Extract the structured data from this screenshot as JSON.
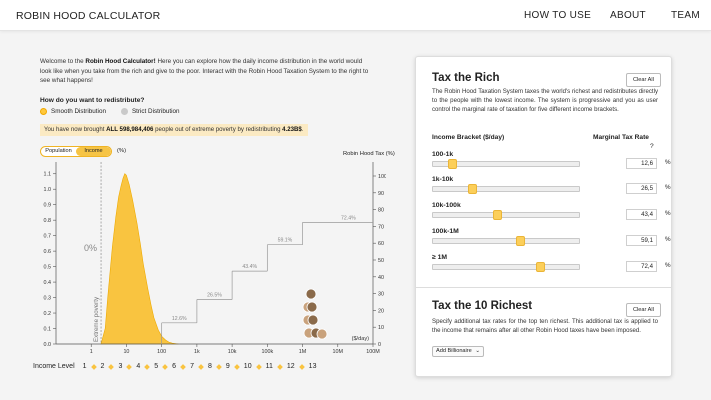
{
  "header": {
    "brand": "ROBIN HOOD CALCULATOR",
    "nav": [
      "HOW TO USE",
      "ABOUT",
      "TEAM"
    ]
  },
  "intro": {
    "p1": "Welcome to the ",
    "app_name": "Robin Hood Calculator!",
    "p2": " Here you can explore how the daily income distribution in the world would look like when you take from the rich and give to the poor. Interact with the Robin Hood Taxation System to the right to see what happens!"
  },
  "question": "How do you want to redistribute?",
  "options": [
    "Smooth Distribution",
    "Strict Distribution"
  ],
  "selected_option": "Smooth Distribution",
  "banner": {
    "pre": "You have now brought ",
    "count": "ALL 598,984,406",
    "mid": " people out of extreme poverty by redistributing ",
    "amount": "4.23B$",
    "post": "."
  },
  "toggle": [
    "Population",
    "Income"
  ],
  "toggle_selected": "Income",
  "pct_unit": "(%)",
  "tax_axis_title": "Robin Hood Tax (%)",
  "chart_data": {
    "type": "area",
    "x_scale": "log",
    "x_ticks": [
      "1",
      "10",
      "100",
      "1k",
      "10k",
      "100k",
      "1M",
      "10M",
      "100M"
    ],
    "x_unit": "($/day)",
    "y_left_ticks": [
      "0.0",
      "0.1",
      "0.2",
      "0.3",
      "0.4",
      "0.5",
      "0.6",
      "0.7",
      "0.8",
      "0.9",
      "1.0",
      "1.1"
    ],
    "y_right_ticks": [
      "0",
      "10",
      "20",
      "30",
      "40",
      "50",
      "60",
      "70",
      "80",
      "90",
      "100"
    ],
    "ylim": [
      0,
      1.15
    ],
    "tax_ylim": [
      0,
      100
    ],
    "poverty_line_label": "Extreme poverty",
    "poverty_line_x": 1.9,
    "poverty_share": "0%",
    "distribution": {
      "x": [
        1.9,
        2.5,
        3,
        4,
        5,
        6,
        7,
        8,
        9,
        10,
        12,
        15,
        20,
        25,
        30,
        40,
        50,
        60,
        80,
        100,
        130,
        160,
        200,
        300
      ],
      "y": [
        0,
        0.1,
        0.32,
        0.63,
        0.82,
        0.95,
        1.02,
        1.07,
        1.1,
        1.09,
        1.03,
        0.93,
        0.78,
        0.64,
        0.52,
        0.36,
        0.25,
        0.17,
        0.09,
        0.05,
        0.025,
        0.012,
        0.005,
        0
      ]
    },
    "tax_steps": [
      {
        "from": 100,
        "to": 1000,
        "rate": 12.6,
        "label": "12.6%"
      },
      {
        "from": 1000,
        "to": 10000,
        "rate": 26.5,
        "label": "26.5%"
      },
      {
        "from": 10000,
        "to": 100000,
        "rate": 43.4,
        "label": "43.4%"
      },
      {
        "from": 100000,
        "to": 1000000,
        "rate": 59.1,
        "label": "59.1%"
      },
      {
        "from": 1000000,
        "to": 100000000,
        "rate": 72.4,
        "label": "72.4%"
      }
    ]
  },
  "income_level": {
    "label": "Income Level",
    "levels": [
      "1",
      "2",
      "3",
      "4",
      "5",
      "6",
      "7",
      "8",
      "9",
      "10",
      "11",
      "12",
      "13"
    ]
  },
  "tax_rich": {
    "title": "Tax the Rich",
    "clear": "Clear All",
    "desc": "The Robin Hood Taxation System taxes the world's richest and redistributes directly to the people with the lowest income. The system is progressive and you as user control the marginal rate of taxation for five different income brackets.",
    "col_bracket": "Income Bracket ($/day)",
    "col_rate": "Marginal Tax Rate",
    "help": "?",
    "brackets": [
      {
        "label": "100-1k",
        "value": "12,6",
        "fraction": 0.126
      },
      {
        "label": "1k-10k",
        "value": "26,5",
        "fraction": 0.265
      },
      {
        "label": "10k-100k",
        "value": "43,4",
        "fraction": 0.434
      },
      {
        "label": "100k-1M",
        "value": "59,1",
        "fraction": 0.591
      },
      {
        "label": "≥ 1M",
        "value": "72,4",
        "fraction": 0.724
      }
    ],
    "pct": "%"
  },
  "tax_richest": {
    "title": "Tax the 10 Richest",
    "clear": "Clear All",
    "desc": "Specify additional tax rates for the top ten richest. This additional tax is applied to the income that remains after all other Robin Hood taxes have been imposed.",
    "add": "Add Billionaire",
    "add_icon": "chevron-down-icon"
  },
  "colors": {
    "accent": "#f9c440",
    "accent_dark": "#eeaa00",
    "banner": "#fbeac3"
  }
}
